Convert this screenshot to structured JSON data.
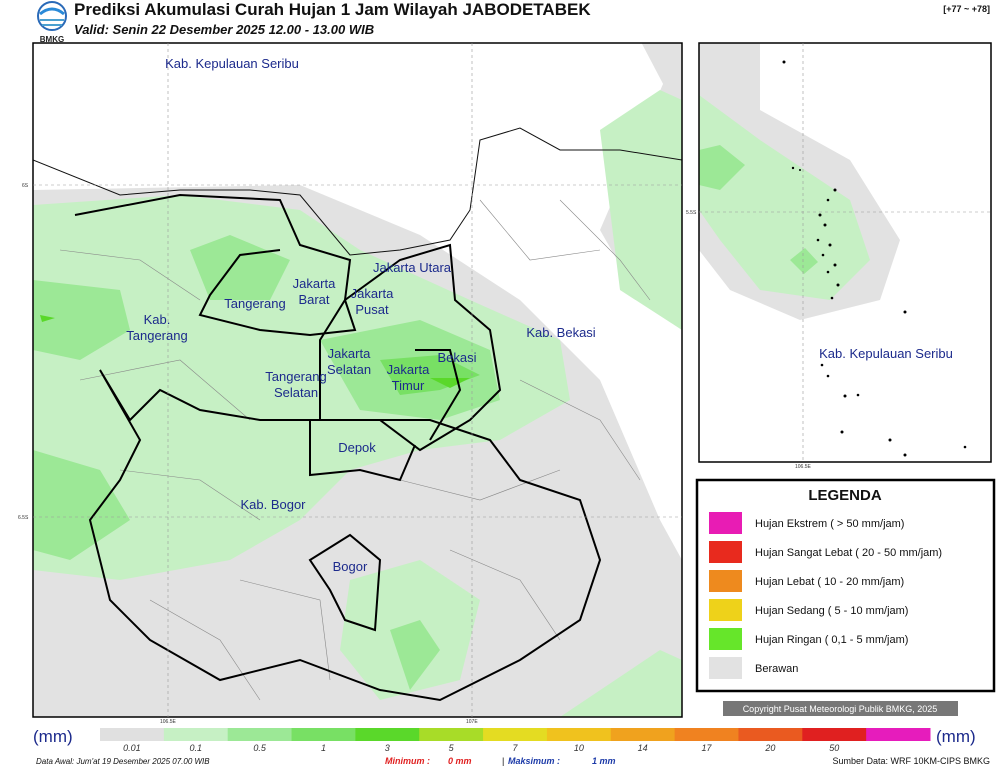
{
  "header": {
    "title": "Prediksi Akumulasi Curah Hujan 1 Jam Wilayah JABODETABEK",
    "valid": "Valid: Senin 22 Desember 2025 12.00 - 13.00 WIB",
    "logo": "BMKG",
    "code": "[+77 ~ +78]"
  },
  "map": {
    "regions": [
      {
        "lines": [
          "Kab. Kepulauan Seribu"
        ]
      },
      {
        "lines": [
          "Jakarta Utara"
        ]
      },
      {
        "lines": [
          "Jakarta",
          "Barat"
        ]
      },
      {
        "lines": [
          "Jakarta",
          "Pusat"
        ]
      },
      {
        "lines": [
          "Tangerang"
        ]
      },
      {
        "lines": [
          "Kab.",
          "Tangerang"
        ]
      },
      {
        "lines": [
          "Jakarta",
          "Selatan"
        ]
      },
      {
        "lines": [
          "Jakarta",
          "Timur"
        ]
      },
      {
        "lines": [
          "Bekasi"
        ]
      },
      {
        "lines": [
          "Kab. Bekasi"
        ]
      },
      {
        "lines": [
          "Tangerang",
          "Selatan"
        ]
      },
      {
        "lines": [
          "Depok"
        ]
      },
      {
        "lines": [
          "Kab. Bogor"
        ]
      },
      {
        "lines": [
          "Bogor"
        ]
      }
    ],
    "grid_labels": [
      "6S",
      "6.5S",
      "106.5E",
      "107E"
    ]
  },
  "inset": {
    "region": "Kab. Kepulauan Seribu",
    "grid_labels": [
      "5.5S",
      "106.5E"
    ]
  },
  "legend": {
    "title": "LEGENDA",
    "items": [
      {
        "label": "Hujan Ekstrem ( > 50 mm/jam)",
        "color": "#e81cb4"
      },
      {
        "label": "Hujan Sangat Lebat ( 20 - 50 mm/jam)",
        "color": "#e82a1e"
      },
      {
        "label": "Hujan Lebat ( 10 - 20 mm/jam)",
        "color": "#ee8a1e"
      },
      {
        "label": "Hujan Sedang ( 5 - 10 mm/jam)",
        "color": "#eed21a"
      },
      {
        "label": "Hujan Ringan ( 0,1 - 5 mm/jam)",
        "color": "#66e62a"
      },
      {
        "label": "Berawan",
        "color": "#e2e2e2"
      }
    ]
  },
  "copyright": "Copyright Pusat Meteorologi Publik BMKG, 2025",
  "colorbar": {
    "unit": "(mm)",
    "ticks": [
      "0.01",
      "0.1",
      "0.5",
      "1",
      "3",
      "5",
      "7",
      "10",
      "14",
      "17",
      "20",
      "50"
    ],
    "colors": [
      "#e0e0e0",
      "#c6f0c4",
      "#9ce896",
      "#78e064",
      "#5ad82a",
      "#a8dc28",
      "#e4dc22",
      "#f0c21e",
      "#f0a21e",
      "#f08220",
      "#ea5a20",
      "#e02020",
      "#e61cbc"
    ]
  },
  "footer": {
    "data_awal": "Data Awal: Jum'at 19 Desember 2025 07.00 WIB",
    "minimum_label": "Minimum :",
    "minimum_value": "0 mm",
    "separator": "|",
    "maksimum_label": "Maksimum :",
    "maksimum_value": "1 mm",
    "source": "Sumber Data: WRF 10KM-CIPS BMKG"
  }
}
